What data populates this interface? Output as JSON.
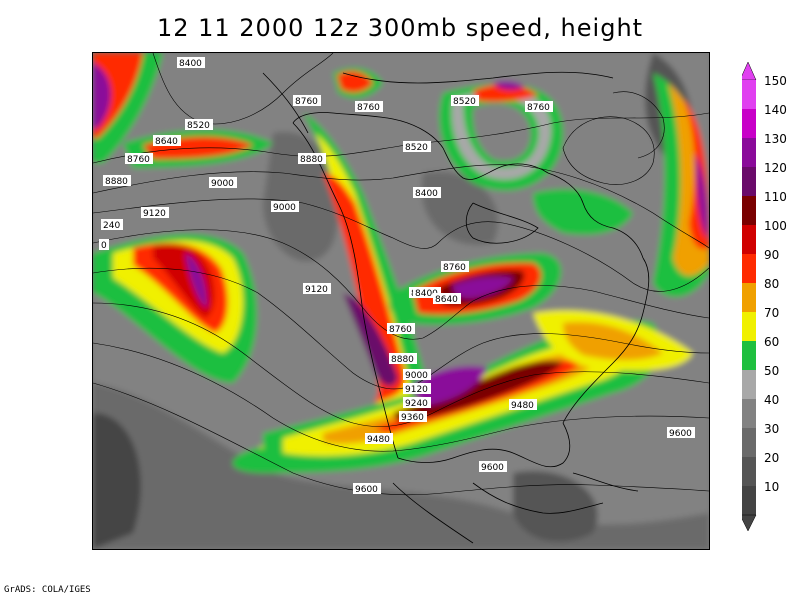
{
  "title": "12 11 2000 12z 300mb speed, height",
  "footer": "GrADS: COLA/IGES",
  "colors": {
    "10": "#444444",
    "20": "#555555",
    "30": "#6a6a6a",
    "40": "#828282",
    "50": "#a8a8a8",
    "60": "#1fbf3f",
    "70": "#f0f000",
    "80": "#f0a000",
    "90": "#ff2a00",
    "100": "#d00000",
    "110": "#7a0000",
    "120": "#6a0a6a",
    "130": "#8a0a9a",
    "140": "#c800c8",
    "150": "#e040f0"
  },
  "legend": {
    "unit_levels": [
      "150",
      "140",
      "130",
      "120",
      "110",
      "100",
      "90",
      "80",
      "70",
      "60",
      "50",
      "40",
      "30",
      "20",
      "10"
    ]
  },
  "contour_labels": [
    "8400",
    "8760",
    "8760",
    "8520",
    "8760",
    "8520",
    "8640",
    "8520",
    "8880",
    "8760",
    "9000",
    "8880",
    "9000",
    "9120",
    "240",
    "0",
    "8400",
    "8760",
    "8880",
    "9120",
    "8400",
    "8640",
    "8760",
    "8880",
    "9000",
    "9120",
    "9240",
    "9360",
    "9480",
    "9480",
    "9600",
    "9600",
    "9600"
  ]
}
